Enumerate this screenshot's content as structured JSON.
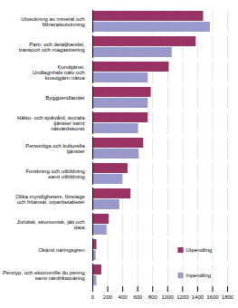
{
  "chart_data": {
    "type": "bar",
    "orientation": "horizontal",
    "categories": [
      "Utveckning av mineral och\nMineralsutvinning",
      "Parti- och detaljhandel,\ntransport och magasinering",
      "Kundtjänst,\nUndlagnhals nätv och\nkusolgjärn nätva",
      "Byggpendlandet",
      "Hälso- och sjukvård, sociala\ntjänster samt\nnätvärdskonst",
      "Personliga och kulturella\ntjänster",
      "Forskning och utbildning\nsamt utbildning",
      "Olika myndigheters, företags\noch frilansal, orparbetabeter",
      "Juridisk, ekonomisk, jätt och\ndata",
      "Okänd näringsgren",
      "Pennyp, och ekonomille du penng\nsamt närdrikatnäring"
    ],
    "series": [
      {
        "name": "Utpendling",
        "color": "#993366",
        "values": [
          1480,
          1380,
          1020,
          780,
          740,
          680,
          470,
          510,
          220,
          55,
          120
        ]
      },
      {
        "name": "Inpendling",
        "color": "#9999cc",
        "values": [
          1570,
          1060,
          740,
          740,
          610,
          620,
          400,
          360,
          190,
          45,
          55
        ]
      }
    ],
    "xlim": [
      0,
      1800
    ],
    "xticks": [
      0,
      200,
      400,
      600,
      800,
      1000,
      1200,
      1400,
      1600,
      1800
    ],
    "grid": true,
    "legend": "lower right"
  }
}
